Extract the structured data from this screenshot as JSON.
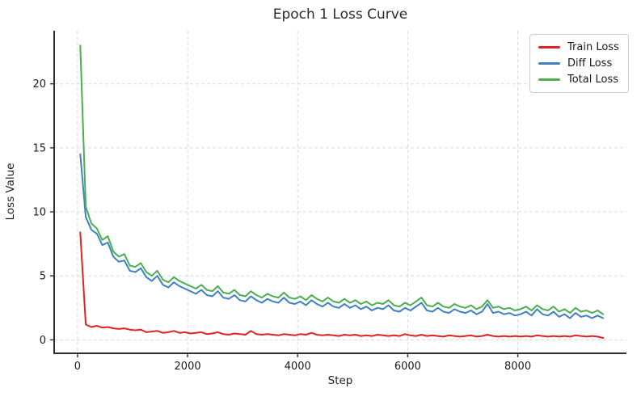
{
  "chart_data": {
    "type": "line",
    "title": "Epoch 1 Loss Curve",
    "xlabel": "Step",
    "ylabel": "Loss Value",
    "xlim": [
      -425,
      9975
    ],
    "ylim": [
      -1.05,
      24.15
    ],
    "xticks": [
      0,
      2000,
      4000,
      6000,
      8000
    ],
    "yticks": [
      0,
      5,
      10,
      15,
      20
    ],
    "grid": "dashed",
    "grid_color": "#d8d8d8",
    "spine_color": "#2e2e2e",
    "legend_position": "upper right",
    "x": [
      50,
      150,
      250,
      350,
      450,
      550,
      650,
      750,
      850,
      950,
      1050,
      1150,
      1250,
      1350,
      1450,
      1550,
      1650,
      1750,
      1850,
      1950,
      2050,
      2150,
      2250,
      2350,
      2450,
      2550,
      2650,
      2750,
      2850,
      2950,
      3050,
      3150,
      3250,
      3350,
      3450,
      3550,
      3650,
      3750,
      3850,
      3950,
      4050,
      4150,
      4250,
      4350,
      4450,
      4550,
      4650,
      4750,
      4850,
      4950,
      5050,
      5150,
      5250,
      5350,
      5450,
      5550,
      5650,
      5750,
      5850,
      5950,
      6050,
      6150,
      6250,
      6350,
      6450,
      6550,
      6650,
      6750,
      6850,
      6950,
      7050,
      7150,
      7250,
      7350,
      7450,
      7550,
      7650,
      7750,
      7850,
      7950,
      8050,
      8150,
      8250,
      8350,
      8450,
      8550,
      8650,
      8750,
      8850,
      8950,
      9050,
      9150,
      9250,
      9350,
      9450,
      9550
    ],
    "series": [
      {
        "name": "Train Loss",
        "color": "#e02222",
        "values": [
          8.4,
          1.2,
          1.0,
          1.1,
          0.95,
          1.0,
          0.9,
          0.85,
          0.9,
          0.8,
          0.75,
          0.8,
          0.6,
          0.65,
          0.7,
          0.55,
          0.6,
          0.7,
          0.55,
          0.6,
          0.5,
          0.55,
          0.6,
          0.45,
          0.5,
          0.6,
          0.45,
          0.4,
          0.5,
          0.45,
          0.4,
          0.7,
          0.45,
          0.4,
          0.45,
          0.4,
          0.35,
          0.45,
          0.4,
          0.35,
          0.45,
          0.4,
          0.55,
          0.4,
          0.35,
          0.4,
          0.35,
          0.3,
          0.4,
          0.35,
          0.4,
          0.3,
          0.35,
          0.3,
          0.4,
          0.35,
          0.3,
          0.35,
          0.3,
          0.45,
          0.35,
          0.3,
          0.4,
          0.3,
          0.35,
          0.3,
          0.25,
          0.35,
          0.3,
          0.25,
          0.3,
          0.35,
          0.25,
          0.3,
          0.4,
          0.3,
          0.25,
          0.3,
          0.25,
          0.3,
          0.25,
          0.3,
          0.25,
          0.35,
          0.3,
          0.25,
          0.3,
          0.25,
          0.3,
          0.25,
          0.35,
          0.3,
          0.25,
          0.3,
          0.25,
          0.15
        ]
      },
      {
        "name": "Diff Loss",
        "color": "#3f81c1",
        "values": [
          14.5,
          9.6,
          8.6,
          8.3,
          7.4,
          7.6,
          6.5,
          6.1,
          6.2,
          5.4,
          5.3,
          5.6,
          4.9,
          4.6,
          5.0,
          4.3,
          4.1,
          4.5,
          4.2,
          4.0,
          3.8,
          3.6,
          3.9,
          3.5,
          3.4,
          3.8,
          3.3,
          3.2,
          3.5,
          3.1,
          3.0,
          3.4,
          3.1,
          2.9,
          3.2,
          3.0,
          2.9,
          3.3,
          2.9,
          2.8,
          3.0,
          2.7,
          3.1,
          2.8,
          2.6,
          2.9,
          2.6,
          2.5,
          2.8,
          2.5,
          2.7,
          2.4,
          2.6,
          2.3,
          2.5,
          2.4,
          2.7,
          2.3,
          2.2,
          2.5,
          2.3,
          2.6,
          2.9,
          2.3,
          2.2,
          2.5,
          2.2,
          2.1,
          2.4,
          2.2,
          2.1,
          2.3,
          2.0,
          2.2,
          2.8,
          2.1,
          2.2,
          2.0,
          2.1,
          1.9,
          2.0,
          2.2,
          1.9,
          2.4,
          2.0,
          1.9,
          2.2,
          1.8,
          2.0,
          1.7,
          2.1,
          1.8,
          1.9,
          1.7,
          1.9,
          1.7
        ]
      },
      {
        "name": "Total Loss",
        "color": "#4bae4f",
        "values": [
          23.0,
          10.4,
          9.1,
          8.7,
          7.8,
          8.1,
          6.9,
          6.5,
          6.7,
          5.8,
          5.7,
          6.0,
          5.3,
          5.0,
          5.4,
          4.7,
          4.5,
          4.9,
          4.6,
          4.4,
          4.2,
          4.0,
          4.3,
          3.9,
          3.8,
          4.2,
          3.7,
          3.6,
          3.9,
          3.5,
          3.4,
          3.8,
          3.5,
          3.3,
          3.6,
          3.4,
          3.3,
          3.7,
          3.3,
          3.2,
          3.4,
          3.1,
          3.5,
          3.2,
          3.0,
          3.3,
          3.0,
          2.9,
          3.2,
          2.9,
          3.1,
          2.8,
          3.0,
          2.7,
          2.9,
          2.8,
          3.1,
          2.7,
          2.6,
          2.9,
          2.7,
          3.0,
          3.3,
          2.7,
          2.6,
          2.9,
          2.6,
          2.5,
          2.8,
          2.6,
          2.5,
          2.7,
          2.4,
          2.6,
          3.1,
          2.5,
          2.6,
          2.4,
          2.5,
          2.3,
          2.4,
          2.6,
          2.3,
          2.7,
          2.4,
          2.3,
          2.6,
          2.2,
          2.4,
          2.1,
          2.5,
          2.2,
          2.3,
          2.1,
          2.3,
          2.0
        ]
      }
    ]
  }
}
